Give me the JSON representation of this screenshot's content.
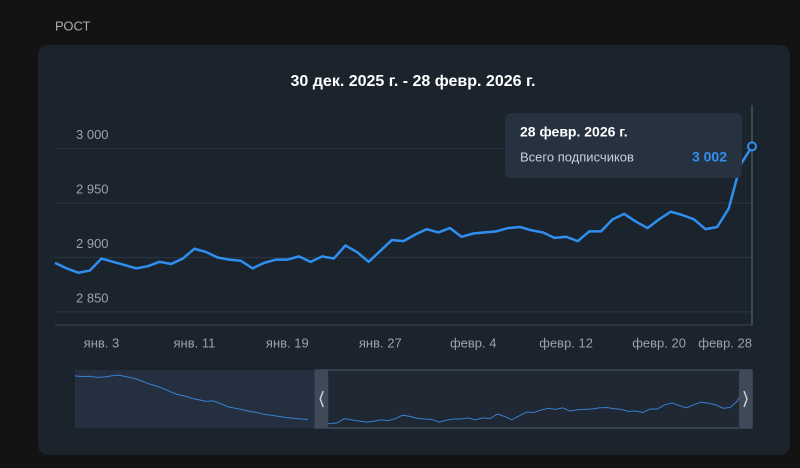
{
  "page": {
    "section": "РОСТ"
  },
  "chart_data": {
    "type": "line",
    "title": "30 дек. 2025 г. - 28 февр. 2026 г.",
    "categories": [
      null,
      null,
      null,
      null,
      "янв. 3",
      null,
      null,
      null,
      null,
      null,
      null,
      null,
      "янв. 11",
      null,
      null,
      null,
      null,
      null,
      null,
      null,
      "янв. 19",
      null,
      null,
      null,
      null,
      null,
      null,
      null,
      "янв. 27",
      null,
      null,
      null,
      null,
      null,
      null,
      null,
      "февр. 4",
      null,
      null,
      null,
      null,
      null,
      null,
      null,
      "февр. 12",
      null,
      null,
      null,
      null,
      null,
      null,
      null,
      "февр. 20",
      null,
      null,
      null,
      null,
      null,
      null,
      null,
      "февр. 28"
    ],
    "series": [
      {
        "name": "Всего подписчиков",
        "color": "#2f8ff0",
        "values": [
          2895,
          2890,
          2886,
          2888,
          2899,
          2896,
          2893,
          2890,
          2892,
          2896,
          2894,
          2899,
          2908,
          2905,
          2900,
          2898,
          2897,
          2890,
          2895,
          2898,
          2898,
          2901,
          2896,
          2901,
          2899,
          2911,
          2905,
          2896,
          2906,
          2916,
          2915,
          2921,
          2926,
          2923,
          2927,
          2919,
          2922,
          2923,
          2924,
          2927,
          2928,
          2925,
          2923,
          2918,
          2919,
          2915,
          2924,
          2924,
          2935,
          2940,
          2933,
          2927,
          2935,
          2942,
          2939,
          2935,
          2926,
          2928,
          2945,
          2985,
          3002
        ]
      }
    ],
    "ylim": [
      2838,
      3040
    ],
    "yticks": [
      {
        "value": 2850,
        "label": "2 850"
      },
      {
        "value": 2900,
        "label": "2 900"
      },
      {
        "value": 2950,
        "label": "2 950"
      },
      {
        "value": 3000,
        "label": "3 000"
      }
    ],
    "grid": true,
    "tooltip": {
      "title": "28 февр. 2026 г.",
      "value": {
        "value": 3002,
        "label": "3 002"
      }
    },
    "overview": {
      "color": "#3a7fd0",
      "ylim": [
        2880,
        3020
      ],
      "values": [
        3010,
        3008,
        3009,
        3006,
        3007,
        3010,
        3012,
        3008,
        3004,
        2998,
        2990,
        2985,
        2978,
        2970,
        2962,
        2958,
        2952,
        2948,
        2944,
        2945,
        2938,
        2930,
        2926,
        2922,
        2918,
        2915,
        2910,
        2908,
        2905,
        2902,
        2900,
        2898,
        2897
      ]
    }
  }
}
